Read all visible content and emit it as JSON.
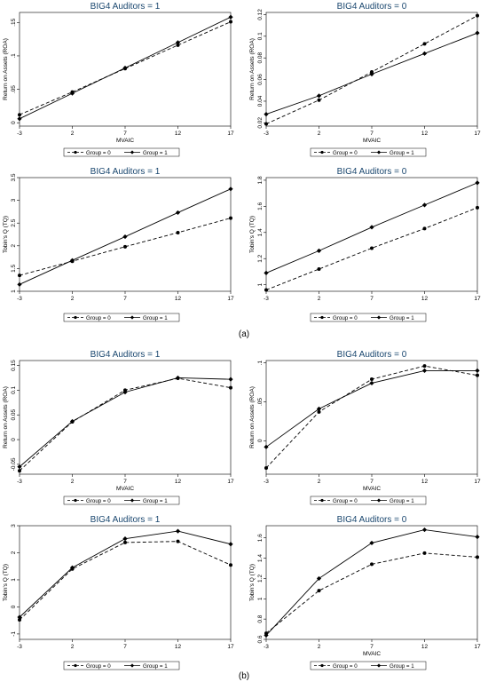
{
  "panel_labels": [
    "(a)",
    "(b)"
  ],
  "chart_data": [
    {
      "type": "line",
      "panel": "(a)",
      "title": "BIG4 Auditors = 1",
      "xlabel": "MVAIC",
      "ylabel": "Return on Assets (ROA)",
      "x": [
        -3,
        2,
        7,
        12,
        17
      ],
      "xticks": [
        "-3",
        "2",
        "7",
        "12",
        "17"
      ],
      "ylim": [
        -0.005,
        0.165
      ],
      "yticks": [
        0,
        0.05,
        0.1,
        0.15
      ],
      "ytick_labels": [
        "0",
        ".05",
        ".1",
        ".15"
      ],
      "series": [
        {
          "name": "Group = 0",
          "values": [
            0.012,
            0.046,
            0.081,
            0.116,
            0.151
          ]
        },
        {
          "name": "Group = 1",
          "values": [
            0.006,
            0.044,
            0.082,
            0.12,
            0.158
          ]
        }
      ],
      "legend": "bottom"
    },
    {
      "type": "line",
      "panel": "(a)",
      "title": "BIG4 Auditors = 0",
      "xlabel": "MVAIC",
      "ylabel": "Return on Assets (ROA)",
      "x": [
        -3,
        2,
        7,
        12,
        17
      ],
      "xticks": [
        "-3",
        "2",
        "7",
        "12",
        "17"
      ],
      "ylim": [
        0.017,
        0.122
      ],
      "yticks": [
        0.02,
        0.04,
        0.06,
        0.08,
        0.1,
        0.12
      ],
      "ytick_labels": [
        "0.02",
        "0.04",
        "0.06",
        "0.08",
        "0.1",
        "0.12"
      ],
      "series": [
        {
          "name": "Group = 0",
          "values": [
            0.019,
            0.041,
            0.067,
            0.093,
            0.119
          ]
        },
        {
          "name": "Group = 1",
          "values": [
            0.028,
            0.045,
            0.065,
            0.084,
            0.103
          ]
        }
      ],
      "legend": "bottom"
    },
    {
      "type": "line",
      "panel": "(a)",
      "title": "BIG4 Auditors = 1",
      "xlabel": "",
      "ylabel": "Tobin's Q (TQ)",
      "x": [
        -3,
        2,
        7,
        12,
        17
      ],
      "xticks": [
        "-3",
        "2",
        "7",
        "12",
        "17"
      ],
      "ylim": [
        1.0,
        3.5
      ],
      "yticks": [
        1,
        1.5,
        2,
        2.5,
        3,
        3.5
      ],
      "ytick_labels": [
        "1",
        "1.5",
        "2",
        "2.5",
        "3",
        "3.5"
      ],
      "series": [
        {
          "name": "Group = 0",
          "values": [
            1.35,
            1.66,
            1.98,
            2.29,
            2.61
          ]
        },
        {
          "name": "Group = 1",
          "values": [
            1.15,
            1.68,
            2.2,
            2.73,
            3.25
          ]
        }
      ],
      "legend": "bottom"
    },
    {
      "type": "line",
      "panel": "(a)",
      "title": "BIG4 Auditors = 0",
      "xlabel": "",
      "ylabel": "Tobin's Q (TQ)",
      "x": [
        -3,
        2,
        7,
        12,
        17
      ],
      "xticks": [
        "-3",
        "2",
        "7",
        "12",
        "17"
      ],
      "ylim": [
        0.95,
        1.82
      ],
      "yticks": [
        1,
        1.2,
        1.4,
        1.6,
        1.8
      ],
      "ytick_labels": [
        "1",
        "1.2",
        "1.4",
        "1.6",
        "1.8"
      ],
      "series": [
        {
          "name": "Group = 0",
          "values": [
            0.96,
            1.12,
            1.28,
            1.43,
            1.59
          ]
        },
        {
          "name": "Group = 1",
          "values": [
            1.09,
            1.26,
            1.44,
            1.61,
            1.78
          ]
        }
      ],
      "legend": "bottom"
    },
    {
      "type": "line",
      "panel": "(b)",
      "title": "BIG4 Auditors = 1",
      "xlabel": "MVAIC",
      "ylabel": "Return on Assets (ROA)",
      "x": [
        -3,
        2,
        7,
        12,
        17
      ],
      "xticks": [
        "-3",
        "2",
        "7",
        "12",
        "17"
      ],
      "ylim": [
        -0.07,
        0.16
      ],
      "yticks": [
        -0.05,
        0,
        0.05,
        0.1,
        0.15
      ],
      "ytick_labels": [
        "-0.05",
        "0",
        "0.05",
        "0.1",
        "0.15"
      ],
      "series": [
        {
          "name": "Group = 0",
          "values": [
            -0.063,
            0.036,
            0.1,
            0.124,
            0.105
          ]
        },
        {
          "name": "Group = 1",
          "values": [
            -0.055,
            0.037,
            0.096,
            0.125,
            0.122
          ]
        }
      ],
      "legend": "bottom"
    },
    {
      "type": "line",
      "panel": "(b)",
      "title": "BIG4 Auditors = 0",
      "xlabel": "MVAIC",
      "ylabel": "Return on Assets (ROA)",
      "x": [
        -3,
        2,
        7,
        12,
        17
      ],
      "xticks": [
        "-3",
        "2",
        "7",
        "12",
        "17"
      ],
      "ylim": [
        -0.043,
        0.103
      ],
      "yticks": [
        0,
        0.05,
        0.1
      ],
      "ytick_labels": [
        "0",
        ".05",
        ".1"
      ],
      "series": [
        {
          "name": "Group = 0",
          "values": [
            -0.035,
            0.037,
            0.079,
            0.096,
            0.084
          ]
        },
        {
          "name": "Group = 1",
          "values": [
            -0.008,
            0.041,
            0.074,
            0.09,
            0.09
          ]
        }
      ],
      "legend": "bottom"
    },
    {
      "type": "line",
      "panel": "(b)",
      "title": "BIG4 Auditors = 1",
      "xlabel": "",
      "ylabel": "Tobin's Q (TQ)",
      "x": [
        -3,
        2,
        7,
        12,
        17
      ],
      "xticks": [
        "-3",
        "2",
        "7",
        "12",
        "17"
      ],
      "ylim": [
        -1.2,
        3.0
      ],
      "yticks": [
        -1,
        0,
        1,
        2,
        3
      ],
      "ytick_labels": [
        "-1",
        "0",
        "1",
        "2",
        "3"
      ],
      "series": [
        {
          "name": "Group = 0",
          "values": [
            -0.48,
            1.4,
            2.38,
            2.42,
            1.55
          ]
        },
        {
          "name": "Group = 1",
          "values": [
            -0.38,
            1.45,
            2.52,
            2.8,
            2.32
          ]
        }
      ],
      "legend": "bottom"
    },
    {
      "type": "line",
      "panel": "(b)",
      "title": "BIG4 Auditors = 0",
      "xlabel": "MVAIC",
      "ylabel": "Tobin's Q (TQ)",
      "x": [
        -3,
        2,
        7,
        12,
        17
      ],
      "xticks": [
        "-3",
        "2",
        "7",
        "12",
        "17"
      ],
      "ylim": [
        0.6,
        1.72
      ],
      "yticks": [
        0.6,
        0.8,
        1,
        1.2,
        1.4,
        1.6
      ],
      "ytick_labels": [
        "0.6",
        "0.8",
        "1",
        "1.2",
        "1.4",
        "1.6"
      ],
      "series": [
        {
          "name": "Group = 0",
          "values": [
            0.66,
            1.08,
            1.34,
            1.45,
            1.41
          ]
        },
        {
          "name": "Group = 1",
          "values": [
            0.64,
            1.2,
            1.55,
            1.68,
            1.61
          ]
        }
      ],
      "legend": "bottom"
    }
  ]
}
